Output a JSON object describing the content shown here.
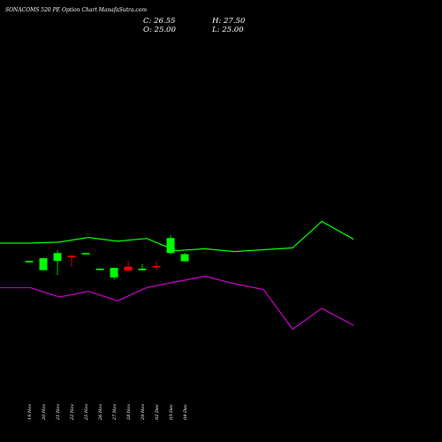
{
  "header": {
    "title": "SONACOMS 520  PE Option  Chart ManafaSutra.com",
    "close": "C: 26.55",
    "open": "O: 25.00",
    "high": "H: 27.50",
    "low": "L: 25.00"
  },
  "chart_data": {
    "type": "candlestick",
    "title": "SONACOMS 520  PE Option  Chart ManafaSutra.com",
    "dates": [
      "19 Nov",
      "20 Nov",
      "21 Nov",
      "22 Nov",
      "25 Nov",
      "26 Nov",
      "27 Nov",
      "28 Nov",
      "29 Nov",
      "02 Dec",
      "03 Dec",
      "04 Dec"
    ],
    "ohlc_units": "relative chart level (top of price panel = 100, bottom = 0); no price axis is printed",
    "candles": [
      {
        "date": "19 Nov",
        "open": 65.3,
        "high": 65.3,
        "low": 64.9,
        "close": 64.9,
        "color": "green"
      },
      {
        "date": "20 Nov",
        "open": 55.5,
        "high": 68.5,
        "low": 55.5,
        "close": 68.1,
        "color": "green"
      },
      {
        "date": "21 Nov",
        "open": 65.3,
        "high": 76.5,
        "low": 50.3,
        "close": 73.6,
        "color": "green"
      },
      {
        "date": "22 Nov",
        "open": 70.8,
        "high": 70.8,
        "low": 59.2,
        "close": 69.3,
        "color": "red"
      },
      {
        "date": "25 Nov",
        "open": 72.4,
        "high": 73.6,
        "low": 72.4,
        "close": 73.6,
        "color": "green"
      },
      {
        "date": "26 Nov",
        "open": 57.1,
        "high": 57.1,
        "low": 56.6,
        "close": 56.6,
        "color": "green"
      },
      {
        "date": "27 Nov",
        "open": 47.8,
        "high": 58.4,
        "low": 45.6,
        "close": 57.9,
        "color": "green"
      },
      {
        "date": "28 Nov",
        "open": 59.2,
        "high": 65.3,
        "low": 55.0,
        "close": 55.0,
        "color": "red"
      },
      {
        "date": "29 Nov",
        "open": 55.5,
        "high": 62.0,
        "low": 55.0,
        "close": 57.1,
        "color": "green"
      },
      {
        "date": "02 Dec",
        "open": 59.9,
        "high": 65.3,
        "low": 55.0,
        "close": 59.2,
        "color": "red"
      },
      {
        "date": "03 Dec",
        "open": 73.6,
        "high": 92.8,
        "low": 72.4,
        "close": 89.5,
        "color": "green"
      },
      {
        "date": "04 Dec",
        "open": 64.9,
        "high": 74.0,
        "low": 64.9,
        "close": 72.4,
        "color": "green"
      }
    ],
    "indicators": [
      {
        "color": "#00ff00",
        "values": [
          84.1,
          84.1,
          85.1,
          90.1,
          86.1,
          89.1,
          76.1,
          78.1,
          75.1,
          77.1,
          79.1,
          107.1,
          88.1
        ]
      },
      {
        "color": "#cc00cc",
        "values": [
          37.1,
          37.1,
          27.1,
          33.1,
          23.1,
          37.1,
          43.1,
          49.1,
          41.1,
          35.1,
          -6.9,
          15.1,
          -2.9
        ]
      }
    ],
    "grid": false,
    "background": "#000000",
    "up_color": "#00ff00",
    "down_color": "#ff0000"
  }
}
